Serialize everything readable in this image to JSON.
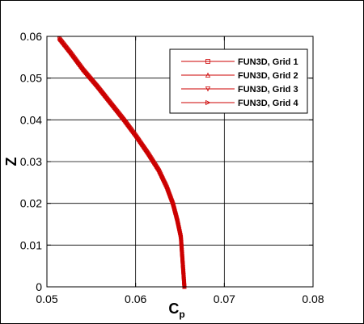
{
  "chart_data": {
    "type": "line",
    "title": "",
    "xlabel": "C",
    "xlabel_subscript": "p",
    "ylabel": "Z",
    "xlim": [
      0.05,
      0.08
    ],
    "ylim": [
      0,
      0.06
    ],
    "x_ticks": [
      "0.05",
      "0.06",
      "0.07",
      "0.08"
    ],
    "y_ticks": [
      "0",
      "0.01",
      "0.02",
      "0.03",
      "0.04",
      "0.05",
      "0.06"
    ],
    "x_tick_values": [
      0.05,
      0.06,
      0.07,
      0.08
    ],
    "y_tick_values": [
      0,
      0.01,
      0.02,
      0.03,
      0.04,
      0.05,
      0.06
    ],
    "grid": true,
    "legend_position": "top-right",
    "line_color": "#cc0000",
    "series": [
      {
        "name": "FUN3D, Grid 1",
        "marker": "square",
        "x": [
          0.0514,
          0.0527,
          0.0541,
          0.0557,
          0.0572,
          0.0587,
          0.0601,
          0.0614,
          0.0626,
          0.0635,
          0.0642,
          0.0647,
          0.0651,
          0.0653,
          0.0655
        ],
        "y": [
          0.0595,
          0.056,
          0.052,
          0.048,
          0.044,
          0.04,
          0.036,
          0.032,
          0.028,
          0.024,
          0.02,
          0.016,
          0.012,
          0.006,
          0.0
        ]
      },
      {
        "name": "FUN3D, Grid 2",
        "marker": "triangle-up",
        "x": [
          0.0514,
          0.0527,
          0.0541,
          0.0557,
          0.0572,
          0.0587,
          0.0601,
          0.0614,
          0.0626,
          0.0635,
          0.0642,
          0.0647,
          0.0651,
          0.0653,
          0.0655
        ],
        "y": [
          0.0595,
          0.056,
          0.052,
          0.048,
          0.044,
          0.04,
          0.036,
          0.032,
          0.028,
          0.024,
          0.02,
          0.016,
          0.012,
          0.006,
          0.0
        ]
      },
      {
        "name": "FUN3D, Grid 3",
        "marker": "triangle-down",
        "x": [
          0.0514,
          0.0527,
          0.0541,
          0.0557,
          0.0572,
          0.0587,
          0.0601,
          0.0614,
          0.0626,
          0.0635,
          0.0642,
          0.0647,
          0.0651,
          0.0653,
          0.0655
        ],
        "y": [
          0.0595,
          0.056,
          0.052,
          0.048,
          0.044,
          0.04,
          0.036,
          0.032,
          0.028,
          0.024,
          0.02,
          0.016,
          0.012,
          0.006,
          0.0
        ]
      },
      {
        "name": "FUN3D, Grid 4",
        "marker": "triangle-right",
        "x": [
          0.0514,
          0.0527,
          0.0541,
          0.0557,
          0.0572,
          0.0587,
          0.0601,
          0.0614,
          0.0626,
          0.0635,
          0.0642,
          0.0647,
          0.0651,
          0.0653,
          0.0655
        ],
        "y": [
          0.0595,
          0.056,
          0.052,
          0.048,
          0.044,
          0.04,
          0.036,
          0.032,
          0.028,
          0.024,
          0.02,
          0.016,
          0.012,
          0.006,
          0.0
        ]
      }
    ]
  }
}
